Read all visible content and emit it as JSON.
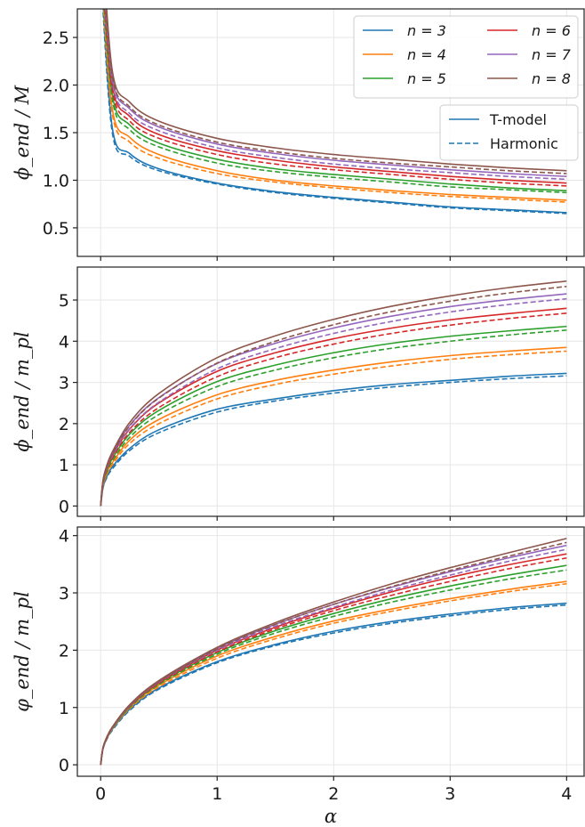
{
  "chart_data": [
    {
      "type": "line",
      "ylabel": "ϕ_end / M",
      "xlim": [
        -0.2,
        4.15
      ],
      "ylim": [
        0.2,
        2.8
      ],
      "yticks": [
        0.5,
        1.0,
        1.5,
        2.0,
        2.5
      ],
      "ytick_labels": [
        "0.5",
        "1.0",
        "1.5",
        "2.0",
        "2.5"
      ],
      "xticks": [
        0,
        1,
        2,
        3,
        4
      ],
      "xtick_labels": [],
      "grid": true,
      "legend_position": "top-right",
      "line_styles_legend": [
        {
          "label": "T-model",
          "dash": "solid"
        },
        {
          "label": "Harmonic",
          "dash": "dashed"
        }
      ],
      "x": [
        0.005,
        0.1,
        0.25,
        0.5,
        1.0,
        1.5,
        2.0,
        2.5,
        3.0,
        3.5,
        4.0
      ],
      "series": [
        {
          "name": "n = 3",
          "color": "#1f77b4",
          "tmodel": [
            3.2,
            1.55,
            1.28,
            1.12,
            0.97,
            0.88,
            0.82,
            0.77,
            0.72,
            0.69,
            0.66
          ],
          "harmonic": [
            3.1,
            1.5,
            1.25,
            1.1,
            0.96,
            0.87,
            0.81,
            0.76,
            0.71,
            0.68,
            0.65
          ]
        },
        {
          "name": "n = 4",
          "color": "#ff7f0e",
          "tmodel": [
            3.3,
            1.75,
            1.45,
            1.27,
            1.1,
            1.0,
            0.94,
            0.89,
            0.85,
            0.82,
            0.79
          ],
          "harmonic": [
            3.2,
            1.7,
            1.4,
            1.23,
            1.07,
            0.98,
            0.92,
            0.87,
            0.83,
            0.8,
            0.77
          ]
        },
        {
          "name": "n = 5",
          "color": "#2ca02c",
          "tmodel": [
            3.4,
            1.9,
            1.58,
            1.39,
            1.22,
            1.12,
            1.06,
            1.01,
            0.96,
            0.92,
            0.89
          ],
          "harmonic": [
            3.3,
            1.85,
            1.53,
            1.35,
            1.18,
            1.09,
            1.03,
            0.98,
            0.93,
            0.9,
            0.87
          ]
        },
        {
          "name": "n = 6",
          "color": "#d62728",
          "tmodel": [
            3.5,
            2.0,
            1.67,
            1.48,
            1.31,
            1.21,
            1.14,
            1.09,
            1.04,
            1.0,
            0.97
          ],
          "harmonic": [
            3.4,
            1.95,
            1.62,
            1.44,
            1.27,
            1.17,
            1.11,
            1.06,
            1.01,
            0.97,
            0.94
          ]
        },
        {
          "name": "n = 7",
          "color": "#9467bd",
          "tmodel": [
            3.6,
            2.08,
            1.75,
            1.56,
            1.38,
            1.28,
            1.21,
            1.16,
            1.11,
            1.07,
            1.04
          ],
          "harmonic": [
            3.5,
            2.03,
            1.7,
            1.52,
            1.34,
            1.24,
            1.17,
            1.12,
            1.08,
            1.04,
            1.01
          ]
        },
        {
          "name": "n = 8",
          "color": "#8c564b",
          "tmodel": [
            3.7,
            2.15,
            1.82,
            1.62,
            1.44,
            1.34,
            1.27,
            1.22,
            1.17,
            1.13,
            1.1
          ],
          "harmonic": [
            3.6,
            2.1,
            1.77,
            1.58,
            1.4,
            1.3,
            1.23,
            1.18,
            1.14,
            1.1,
            1.07
          ]
        }
      ]
    },
    {
      "type": "line",
      "ylabel": "ϕ_end / m_pl",
      "xlim": [
        -0.2,
        4.15
      ],
      "ylim": [
        -0.25,
        5.8
      ],
      "yticks": [
        0,
        1,
        2,
        3,
        4,
        5
      ],
      "ytick_labels": [
        "0",
        "1",
        "2",
        "3",
        "4",
        "5"
      ],
      "xticks": [
        0,
        1,
        2,
        3,
        4
      ],
      "xtick_labels": [],
      "grid": true,
      "x": [
        0.0,
        0.02,
        0.05,
        0.1,
        0.25,
        0.5,
        1.0,
        1.5,
        2.0,
        2.5,
        3.0,
        3.5,
        4.0
      ],
      "series": [
        {
          "name": "n = 3",
          "color": "#1f77b4",
          "tmodel": [
            0.0,
            0.45,
            0.7,
            0.95,
            1.4,
            1.85,
            2.35,
            2.6,
            2.8,
            2.95,
            3.05,
            3.15,
            3.22
          ],
          "harmonic": [
            0.0,
            0.43,
            0.67,
            0.9,
            1.35,
            1.78,
            2.28,
            2.55,
            2.74,
            2.89,
            3.0,
            3.09,
            3.16
          ]
        },
        {
          "name": "n = 4",
          "color": "#ff7f0e",
          "tmodel": [
            0.0,
            0.5,
            0.78,
            1.05,
            1.6,
            2.1,
            2.7,
            3.05,
            3.3,
            3.5,
            3.65,
            3.76,
            3.85
          ],
          "harmonic": [
            0.0,
            0.48,
            0.74,
            1.0,
            1.52,
            2.0,
            2.6,
            2.95,
            3.2,
            3.4,
            3.56,
            3.67,
            3.76
          ]
        },
        {
          "name": "n = 5",
          "color": "#2ca02c",
          "tmodel": [
            0.0,
            0.55,
            0.85,
            1.15,
            1.75,
            2.32,
            3.02,
            3.42,
            3.72,
            3.95,
            4.12,
            4.25,
            4.36
          ],
          "harmonic": [
            0.0,
            0.52,
            0.8,
            1.09,
            1.67,
            2.22,
            2.9,
            3.3,
            3.6,
            3.83,
            4.0,
            4.15,
            4.27
          ]
        },
        {
          "name": "n = 6",
          "color": "#d62728",
          "tmodel": [
            0.0,
            0.58,
            0.9,
            1.22,
            1.87,
            2.5,
            3.27,
            3.72,
            4.06,
            4.32,
            4.52,
            4.67,
            4.8
          ],
          "harmonic": [
            0.0,
            0.55,
            0.85,
            1.16,
            1.79,
            2.39,
            3.14,
            3.6,
            3.93,
            4.19,
            4.39,
            4.55,
            4.68
          ]
        },
        {
          "name": "n = 7",
          "color": "#9467bd",
          "tmodel": [
            0.0,
            0.6,
            0.93,
            1.27,
            1.96,
            2.63,
            3.46,
            3.95,
            4.32,
            4.61,
            4.84,
            5.01,
            5.15
          ],
          "harmonic": [
            0.0,
            0.57,
            0.88,
            1.21,
            1.88,
            2.52,
            3.33,
            3.82,
            4.19,
            4.48,
            4.71,
            4.89,
            5.03
          ]
        },
        {
          "name": "n = 8",
          "color": "#8c564b",
          "tmodel": [
            0.0,
            0.62,
            0.96,
            1.31,
            2.03,
            2.73,
            3.6,
            4.13,
            4.53,
            4.85,
            5.1,
            5.3,
            5.46
          ],
          "harmonic": [
            0.0,
            0.59,
            0.91,
            1.25,
            1.95,
            2.62,
            3.47,
            4.0,
            4.4,
            4.72,
            4.97,
            5.17,
            5.33
          ]
        }
      ]
    },
    {
      "type": "line",
      "ylabel": "φ_end / m_pl",
      "xlabel": "α",
      "xlim": [
        -0.2,
        4.15
      ],
      "ylim": [
        -0.2,
        4.15
      ],
      "yticks": [
        0,
        1,
        2,
        3,
        4
      ],
      "ytick_labels": [
        "0",
        "1",
        "2",
        "3",
        "4"
      ],
      "xticks": [
        0,
        1,
        2,
        3,
        4
      ],
      "xtick_labels": [
        "0",
        "1",
        "2",
        "3",
        "4"
      ],
      "grid": true,
      "x": [
        0.0,
        0.02,
        0.05,
        0.1,
        0.25,
        0.5,
        1.0,
        1.5,
        2.0,
        2.5,
        3.0,
        3.5,
        4.0
      ],
      "series": [
        {
          "name": "n = 3",
          "color": "#1f77b4",
          "tmodel": [
            0.0,
            0.28,
            0.44,
            0.62,
            0.97,
            1.34,
            1.8,
            2.1,
            2.33,
            2.5,
            2.63,
            2.74,
            2.82
          ],
          "harmonic": [
            0.0,
            0.27,
            0.43,
            0.6,
            0.95,
            1.32,
            1.78,
            2.08,
            2.3,
            2.47,
            2.6,
            2.71,
            2.79
          ]
        },
        {
          "name": "n = 4",
          "color": "#ff7f0e",
          "tmodel": [
            0.0,
            0.28,
            0.45,
            0.63,
            1.0,
            1.39,
            1.9,
            2.24,
            2.51,
            2.72,
            2.9,
            3.06,
            3.2
          ],
          "harmonic": [
            0.0,
            0.28,
            0.44,
            0.62,
            0.98,
            1.36,
            1.86,
            2.2,
            2.47,
            2.68,
            2.86,
            3.02,
            3.16
          ]
        },
        {
          "name": "n = 5",
          "color": "#2ca02c",
          "tmodel": [
            0.0,
            0.29,
            0.46,
            0.64,
            1.02,
            1.42,
            1.96,
            2.34,
            2.64,
            2.9,
            3.12,
            3.31,
            3.48
          ],
          "harmonic": [
            0.0,
            0.28,
            0.45,
            0.63,
            1.0,
            1.4,
            1.93,
            2.3,
            2.59,
            2.84,
            3.05,
            3.24,
            3.4
          ]
        },
        {
          "name": "n = 6",
          "color": "#d62728",
          "tmodel": [
            0.0,
            0.29,
            0.46,
            0.65,
            1.03,
            1.44,
            2.0,
            2.4,
            2.73,
            3.02,
            3.27,
            3.49,
            3.68
          ],
          "harmonic": [
            0.0,
            0.29,
            0.45,
            0.64,
            1.02,
            1.42,
            1.97,
            2.37,
            2.69,
            2.96,
            3.2,
            3.42,
            3.61
          ]
        },
        {
          "name": "n = 7",
          "color": "#9467bd",
          "tmodel": [
            0.0,
            0.29,
            0.47,
            0.65,
            1.04,
            1.46,
            2.03,
            2.45,
            2.8,
            3.1,
            3.37,
            3.61,
            3.83
          ],
          "harmonic": [
            0.0,
            0.29,
            0.46,
            0.64,
            1.03,
            1.44,
            2.0,
            2.42,
            2.75,
            3.05,
            3.31,
            3.55,
            3.76
          ]
        },
        {
          "name": "n = 8",
          "color": "#8c564b",
          "tmodel": [
            0.0,
            0.3,
            0.47,
            0.66,
            1.05,
            1.47,
            2.05,
            2.48,
            2.84,
            3.16,
            3.44,
            3.7,
            3.95
          ],
          "harmonic": [
            0.0,
            0.29,
            0.46,
            0.65,
            1.04,
            1.45,
            2.02,
            2.45,
            2.8,
            3.11,
            3.39,
            3.64,
            3.88
          ]
        }
      ]
    }
  ]
}
